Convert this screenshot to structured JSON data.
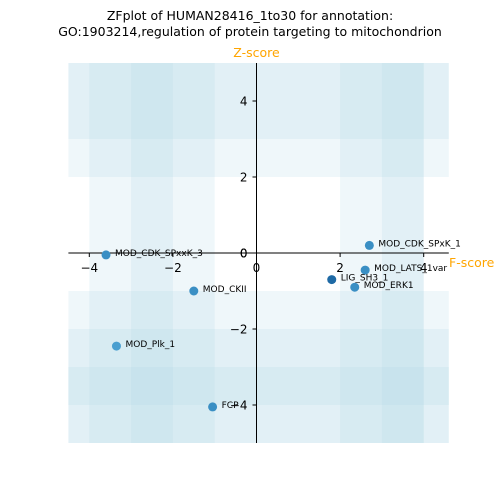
{
  "title_line1": "ZFplot of HUMAN28416_1to30 for annotation:",
  "title_line2": "GO:1903214,regulation of protein targeting to mitochondrion",
  "chart_data": {
    "type": "scatter",
    "xlabel": "F-score",
    "ylabel": "Z-score",
    "xlim": [
      -4.5,
      4.6
    ],
    "ylim": [
      -5.0,
      5.0
    ],
    "xticks": [
      -4,
      -2,
      0,
      2,
      4
    ],
    "yticks": [
      -4,
      -2,
      0,
      2,
      4
    ],
    "axis_label_color": "#ffa500",
    "band_color": "#add8e6",
    "shaded_x_bands": [
      [
        -4,
        -1
      ],
      [
        -3,
        -2
      ],
      [
        2,
        4
      ],
      [
        3,
        4
      ]
    ],
    "shaded_y_bands": [
      [
        -5,
        -1
      ],
      [
        -5,
        -2
      ],
      [
        -4,
        -3
      ],
      [
        2,
        5
      ],
      [
        3,
        5
      ]
    ],
    "points": [
      {
        "label": "MOD_CDK_SPxK_1",
        "x": 2.7,
        "y": 0.2,
        "color": "#3a8fc4"
      },
      {
        "label": "MOD_CDK_SPxxK_3",
        "x": -3.6,
        "y": -0.05,
        "color": "#3a8fc4"
      },
      {
        "label": "MOD_LATS_1var",
        "x": 2.6,
        "y": -0.45,
        "color": "#3a8fc4"
      },
      {
        "label": "LIG_SH3_1",
        "x": 1.8,
        "y": -0.7,
        "color": "#1f6aa5"
      },
      {
        "label": "MOD_ERK1",
        "x": 2.35,
        "y": -0.9,
        "color": "#3a8fc4"
      },
      {
        "label": "MOD_CKII",
        "x": -1.5,
        "y": -1.0,
        "color": "#3a8fc4"
      },
      {
        "label": "MOD_Plk_1",
        "x": -3.35,
        "y": -2.45,
        "color": "#4a9fd0"
      },
      {
        "label": "FCP",
        "x": -1.05,
        "y": -4.05,
        "color": "#3a8fc4"
      }
    ]
  }
}
